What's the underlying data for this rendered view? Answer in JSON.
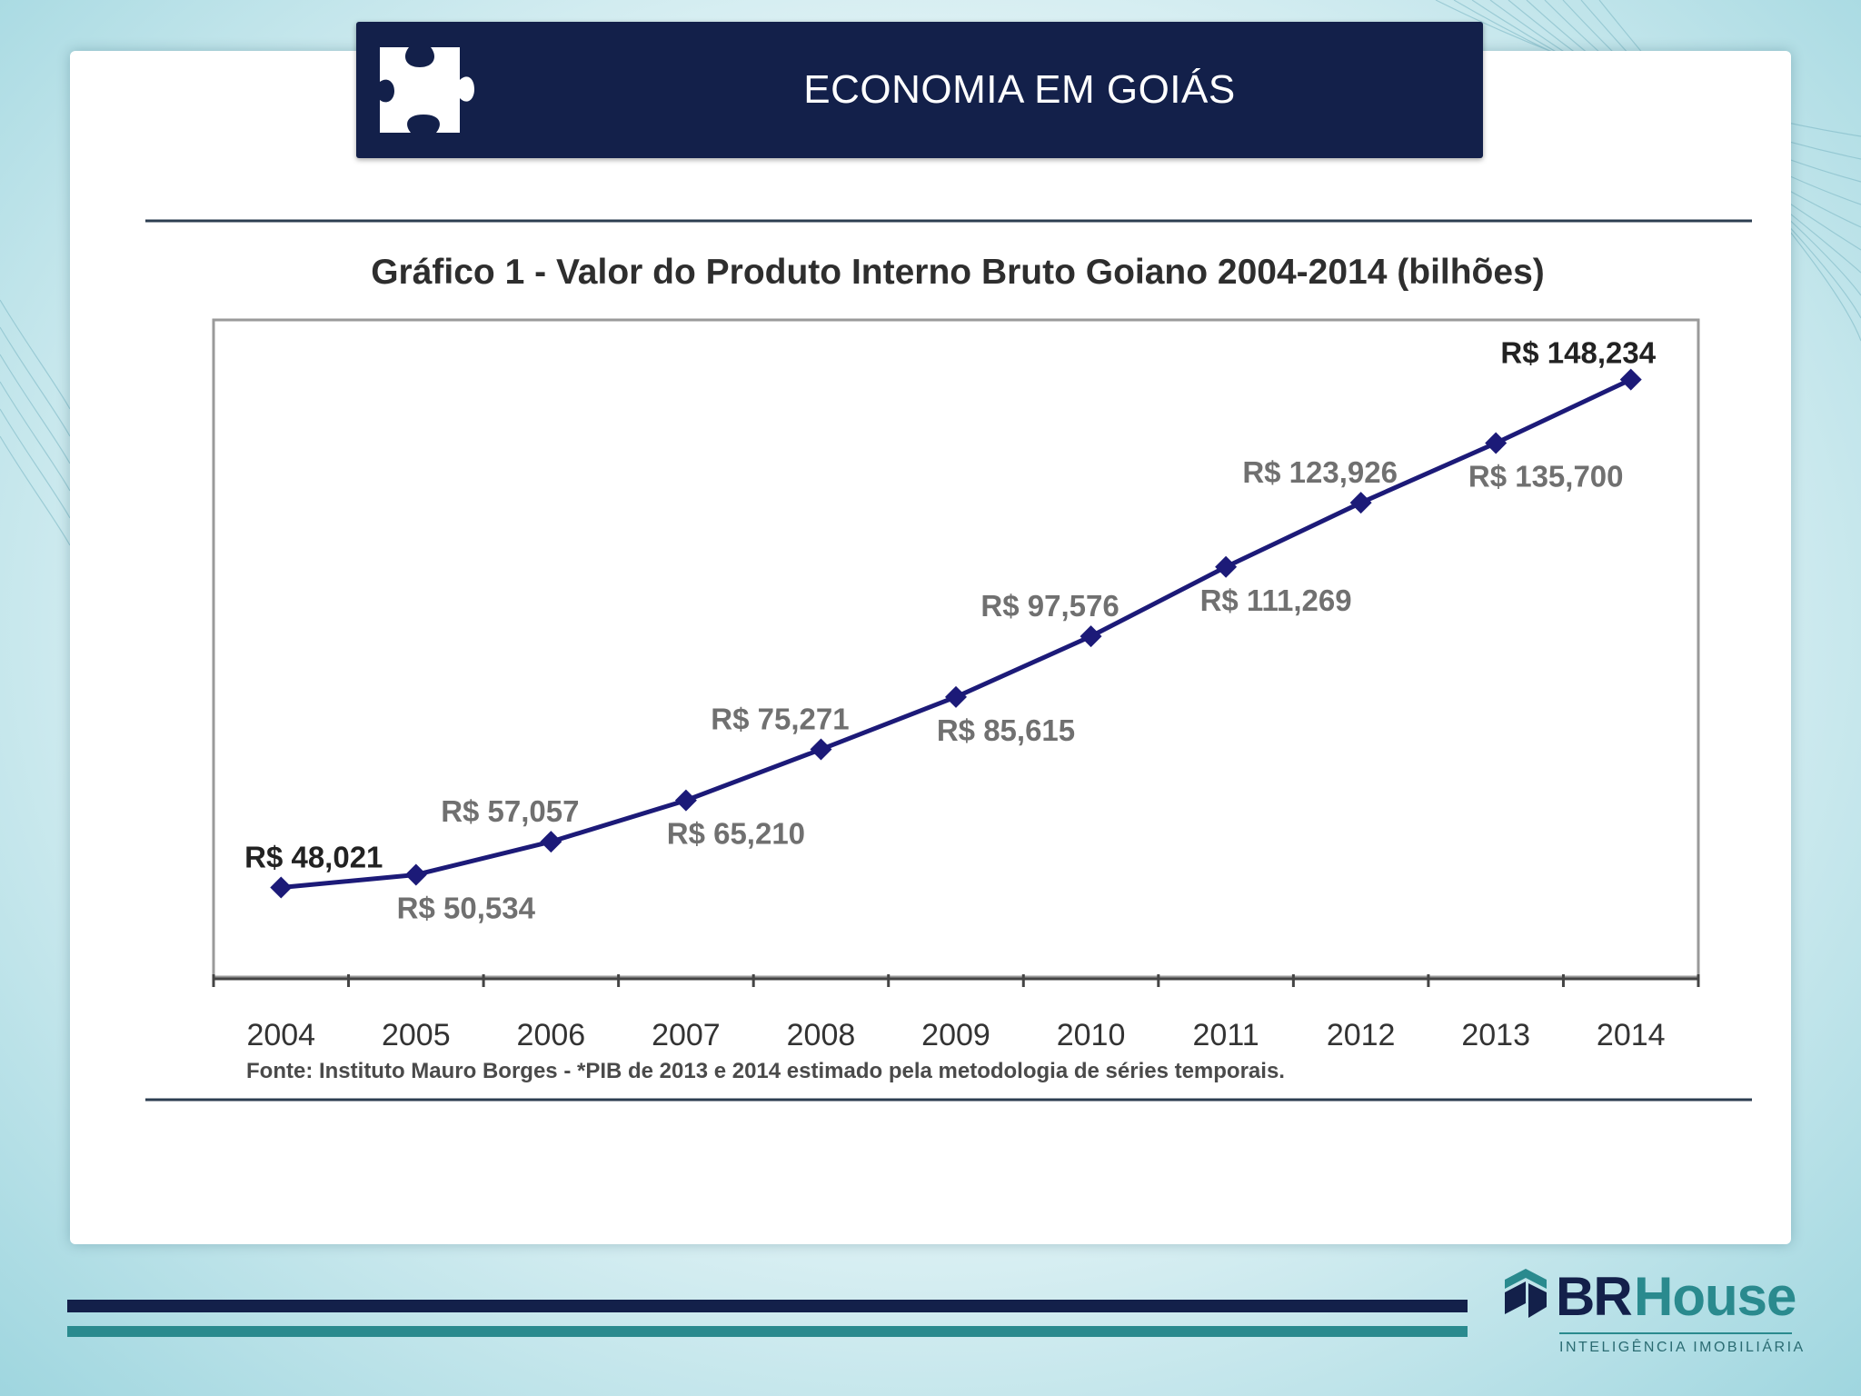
{
  "slide": {
    "title": "ECONOMIA EM GOIÁS"
  },
  "brand": {
    "name_part1": "BR",
    "name_part2": "House",
    "tagline": "INTELIGÊNCIA IMOBILIÁRIA"
  },
  "colors": {
    "navy": "#13204a",
    "teal": "#2a8a8e",
    "series": "#1c1a78"
  },
  "chart_data": {
    "type": "line",
    "title": "Gráfico 1 - Valor do Produto Interno Bruto Goiano 2004-2014 (bilhões)",
    "xlabel": "",
    "ylabel": "",
    "categories": [
      "2004",
      "2005",
      "2006",
      "2007",
      "2008",
      "2009",
      "2010",
      "2011",
      "2012",
      "2013",
      "2014"
    ],
    "series": [
      {
        "name": "PIB Goiano",
        "values": [
          48.021,
          50.534,
          57.057,
          65.21,
          75.271,
          85.615,
          97.576,
          111.269,
          123.926,
          135.7,
          148.234
        ],
        "labels": [
          "R$ 48,021",
          "R$ 50,534",
          "R$ 57,057",
          "R$ 65,210",
          "R$ 75,271",
          "R$ 85,615",
          "R$ 97,576",
          "R$ 111,269",
          "R$ 123,926",
          "R$ 135,700",
          "R$ 148,234"
        ],
        "label_side": [
          "above",
          "below",
          "above",
          "below",
          "above",
          "below",
          "above",
          "below",
          "above",
          "below",
          "above"
        ],
        "label_bold": [
          true,
          false,
          false,
          false,
          false,
          false,
          false,
          false,
          false,
          false,
          true
        ]
      }
    ],
    "ylim": [
      30,
      160
    ],
    "grid": false,
    "legend": "none",
    "source_note": "Fonte: Instituto Mauro Borges - *PIB de 2013 e 2014 estimado pela metodologia de séries temporais."
  }
}
